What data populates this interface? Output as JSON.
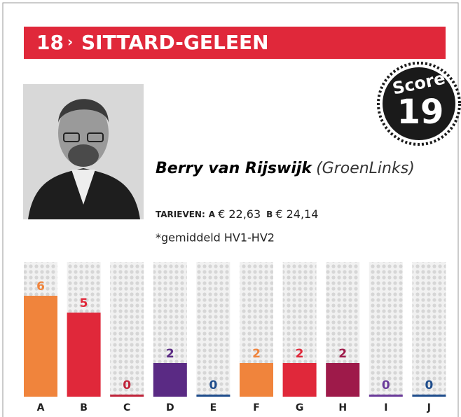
{
  "header": {
    "number": "18",
    "title": "SITTARD-GELEEN"
  },
  "score": {
    "label": "Score",
    "value": "19"
  },
  "person": {
    "name": "Berry van Rijswijk",
    "party": "(GroenLinks)"
  },
  "tariffs": {
    "label": "TARIEVEN:",
    "items": [
      {
        "name": "A",
        "price": "€ 22,63"
      },
      {
        "name": "B",
        "price": "€ 24,14"
      }
    ],
    "note": "*gemiddeld HV1-HV2"
  },
  "chart_data": {
    "type": "bar",
    "categories": [
      "A",
      "B",
      "C",
      "D",
      "E",
      "F",
      "G",
      "H",
      "I",
      "J"
    ],
    "values": [
      6,
      5,
      0,
      2,
      0,
      2,
      2,
      2,
      0,
      0
    ],
    "colors": [
      "#f0843c",
      "#e0283a",
      "#c0243a",
      "#5a2a84",
      "#1f4d8c",
      "#f0843c",
      "#e0283a",
      "#9e1a4a",
      "#6a3a9a",
      "#1f4d8c"
    ],
    "ylim": [
      0,
      8
    ]
  }
}
